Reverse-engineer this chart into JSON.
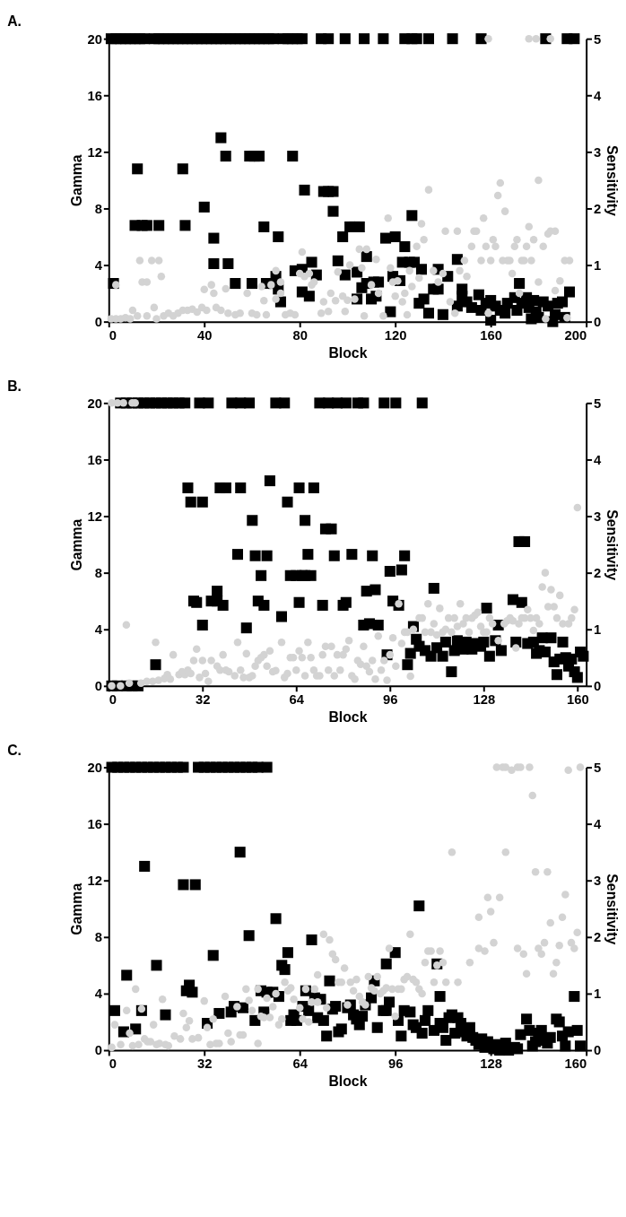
{
  "chart_data": [
    {
      "type": "scatter",
      "title": "A.",
      "xlabel": "Block",
      "ylabel": "Gamma",
      "y2label": "Sensitivity",
      "xlim": [
        0,
        200
      ],
      "xticks": [
        0,
        40,
        80,
        120,
        160,
        200
      ],
      "ylim": [
        0,
        20
      ],
      "yticks": [
        0,
        4,
        8,
        12,
        16,
        20
      ],
      "y2lim": [
        0,
        5
      ],
      "y2ticks": [
        0,
        1,
        2,
        3,
        4,
        5
      ],
      "grid": false,
      "series": [
        {
          "color": "#000000",
          "marker": "square",
          "x": [
            1,
            3,
            5,
            7,
            9,
            11,
            13,
            15,
            19,
            21,
            23,
            25,
            27,
            29,
            31,
            33,
            35,
            37,
            39,
            41,
            43,
            45,
            47,
            49,
            51,
            53,
            55,
            57,
            59,
            61,
            63,
            65,
            67,
            69,
            73,
            75,
            77,
            79,
            81,
            89,
            92,
            99,
            107,
            115,
            124,
            127,
            129,
            134,
            144,
            156,
            183,
            192,
            195,
            2,
            12,
            11,
            14,
            16,
            21,
            31,
            32,
            40,
            44,
            44,
            47,
            49,
            50,
            53,
            59,
            61,
            63,
            60,
            65,
            66,
            69,
            70,
            71,
            72,
            71,
            77,
            78,
            81,
            82,
            81,
            84,
            85,
            87,
            90,
            92,
            94,
            94,
            96,
            98,
            99,
            101,
            103,
            105,
            104,
            104,
            106,
            108,
            108,
            110,
            111,
            112,
            113,
            116,
            118,
            119,
            120,
            122,
            123,
            124,
            126,
            127,
            128,
            130,
            131,
            132,
            134,
            136,
            138,
            138,
            140,
            142,
            146,
            146,
            148,
            148,
            150,
            152,
            155,
            156,
            158,
            160,
            160,
            162,
            164,
            166,
            167,
            170,
            171,
            172,
            173,
            175,
            176,
            177,
            178,
            179,
            180,
            182,
            184,
            186,
            187,
            188,
            190,
            191,
            193
          ],
          "values": [
            20,
            20,
            20,
            20,
            20,
            20,
            20,
            20,
            20,
            20,
            20,
            20,
            20,
            20,
            20,
            20,
            20,
            20,
            20,
            20,
            20,
            20,
            20,
            20,
            20,
            20,
            20,
            20,
            20,
            20,
            20,
            20,
            20,
            20,
            20,
            20,
            20,
            20,
            20,
            20,
            20,
            20,
            20,
            20,
            20,
            20,
            20,
            20,
            20,
            20,
            20,
            20,
            20,
            2.7,
            10.8,
            6.8,
            6.8,
            6.8,
            6.8,
            10.8,
            6.8,
            8.1,
            5.9,
            4.1,
            13,
            11.7,
            4.1,
            2.7,
            11.7,
            11.7,
            11.7,
            2.7,
            6.7,
            2.7,
            2.7,
            3.2,
            6,
            1.4,
            2.3,
            11.7,
            3.6,
            3.7,
            9.3,
            2.1,
            1.8,
            4.2,
            3.3,
            9.2,
            9.2,
            9.2,
            7.8,
            4.3,
            6,
            3.3,
            6.7,
            6.7,
            6.7,
            3.5,
            1.6,
            2.4,
            4.6,
            2.7,
            1.6,
            2.8,
            1.8,
            2.8,
            5.9,
            0.7,
            3.2,
            6,
            2.9,
            4.2,
            5.3,
            4.2,
            7.5,
            4.2,
            1.3,
            3.7,
            1.6,
            0.6,
            2.3,
            3.7,
            2.3,
            0.5,
            3.2,
            4.4,
            1.1,
            2.3,
            1.8,
            1.4,
            1,
            1.9,
            0.8,
            1.3,
            0.1,
            1.5,
            1.1,
            0.8,
            0.6,
            1.3,
            1.7,
            0.8,
            2.7,
            1.3,
            1.7,
            1,
            0.2,
            1.5,
            0.7,
            0.3,
            1.4,
            1.1,
            0,
            0.5,
            1.3,
            1.4,
            0.3,
            2.1
          ]
        },
        {
          "color": "#d3d3d3",
          "marker": "circle",
          "axis": "y2",
          "x": [
            1,
            3,
            3,
            5,
            7,
            9,
            10,
            12,
            13,
            14,
            16,
            16,
            18,
            19,
            20,
            21,
            22,
            23,
            25,
            27,
            29,
            31,
            33,
            35,
            37,
            39,
            40,
            41,
            43,
            44,
            45,
            47,
            49,
            50,
            53,
            55,
            58,
            60,
            62,
            64,
            65,
            66,
            68,
            70,
            70,
            72,
            72,
            74,
            76,
            78,
            80,
            81,
            82,
            84,
            85,
            86,
            89,
            90,
            92,
            93,
            95,
            96,
            98,
            99,
            100,
            101,
            103,
            105,
            106,
            107,
            108,
            110,
            112,
            113,
            115,
            117,
            118,
            119,
            120,
            121,
            123,
            124,
            125,
            126,
            127,
            129,
            130,
            131,
            132,
            134,
            136,
            138,
            140,
            141,
            143,
            145,
            146,
            147,
            149,
            150,
            152,
            153,
            154,
            156,
            157,
            158,
            159,
            160,
            161,
            162,
            163,
            164,
            165,
            166,
            167,
            168,
            169,
            170,
            171,
            172,
            173,
            174,
            175,
            176,
            177,
            178,
            180,
            180,
            182,
            183,
            184,
            185,
            187,
            187,
            189,
            191,
            192,
            193,
            159,
            176,
            179,
            185
          ],
          "values": [
            0.05,
            0.65,
            0.05,
            0.05,
            0.07,
            0.05,
            0.2,
            0.1,
            1.08,
            0.7,
            0.7,
            0.1,
            1.08,
            0.25,
            0.05,
            1.08,
            0.8,
            0.1,
            0.15,
            0.1,
            0.15,
            0.2,
            0.2,
            0.22,
            0.17,
            0.25,
            0.57,
            0.2,
            0.65,
            0.5,
            0.25,
            0.2,
            0.58,
            0.15,
            0.12,
            0.15,
            0.5,
            0.15,
            0.12,
            0.62,
            0.37,
            0.12,
            0.65,
            0.4,
            0.9,
            0.7,
            0.5,
            0.12,
            0.15,
            0.12,
            0.85,
            1.23,
            0.8,
            0.85,
            0.65,
            0.7,
            0.15,
            0.35,
            0.18,
            0.5,
            0.37,
            0.88,
            0.45,
            0.18,
            0.38,
            1,
            0.4,
            1.28,
            0.95,
            0.1,
            1.28,
            0.65,
            1.1,
            0.5,
            0.1,
            1.83,
            0.95,
            0.7,
            0.45,
            0.72,
            0.35,
            0.5,
            0.12,
            0.9,
            0.62,
            1.33,
            0.77,
            1.73,
            1.45,
            2.33,
            0.9,
            0.7,
            0.85,
            1.6,
            0.35,
            0.15,
            1.6,
            0.9,
            1.08,
            0.8,
            1.33,
            1.6,
            1.6,
            1.08,
            1.83,
            1.33,
            0.15,
            1.08,
            1.45,
            1.33,
            2.23,
            2.45,
            1.08,
            1.95,
            1.08,
            1.08,
            0.85,
            1.33,
            1.45,
            0.5,
            1.08,
            1.08,
            1.33,
            1.68,
            1.08,
            1.45,
            0.7,
            2.5,
            1.33,
            0.05,
            1.55,
            1.6,
            1.6,
            0.55,
            0.72,
            1.08,
            0.07,
            1.08,
            5,
            5,
            5,
            5
          ]
        }
      ]
    },
    {
      "type": "scatter",
      "title": "B.",
      "xlabel": "Block",
      "ylabel": "Gamma",
      "y2label": "Sensitivity",
      "xlim": [
        0,
        163
      ],
      "xticks": [
        0,
        32,
        64,
        96,
        128,
        160
      ],
      "ylim": [
        0,
        20
      ],
      "yticks": [
        0,
        4,
        8,
        12,
        16,
        20
      ],
      "y2lim": [
        0,
        5
      ],
      "y2ticks": [
        0,
        1,
        2,
        3,
        4,
        5
      ],
      "grid": false,
      "series": [
        {
          "color": "#000000",
          "marker": "square",
          "x": [
            4,
            6,
            8,
            10,
            12,
            14,
            16,
            18,
            20,
            22,
            24,
            26,
            31,
            34,
            42,
            45,
            48,
            57,
            60,
            72,
            75,
            78,
            81,
            85,
            87,
            94,
            98,
            107,
            1,
            3,
            6,
            8,
            10,
            16,
            27,
            28,
            29,
            30,
            32,
            32,
            35,
            37,
            37,
            38,
            40,
            39,
            44,
            45,
            47,
            49,
            50,
            51,
            52,
            53,
            54,
            55,
            59,
            61,
            62,
            64,
            65,
            65,
            66,
            67,
            67,
            68,
            69,
            70,
            73,
            74,
            76,
            77,
            80,
            81,
            83,
            87,
            88,
            89,
            91,
            92,
            90,
            95,
            96,
            97,
            99,
            100,
            101,
            102,
            103,
            104,
            105,
            106,
            108,
            110,
            111,
            112,
            114,
            115,
            117,
            118,
            119,
            121,
            122,
            124,
            125,
            127,
            128,
            129,
            130,
            132,
            133,
            134,
            138,
            139,
            140,
            141,
            142,
            143,
            145,
            146,
            147,
            148,
            149,
            151,
            152,
            153,
            154,
            155,
            156,
            157,
            158,
            159,
            160,
            161,
            162
          ],
          "values": [
            20,
            20,
            20,
            20,
            20,
            20,
            20,
            20,
            20,
            20,
            20,
            20,
            20,
            20,
            20,
            20,
            20,
            20,
            20,
            20,
            20,
            20,
            20,
            20,
            20,
            20,
            20,
            20,
            0,
            0,
            0,
            0,
            0,
            1.5,
            14,
            13,
            6,
            5.9,
            13,
            4.3,
            6,
            6.7,
            6,
            14,
            14,
            5.7,
            9.3,
            14,
            4.1,
            11.7,
            9.2,
            6,
            7.8,
            5.7,
            9.2,
            14.5,
            4.9,
            13,
            7.8,
            7.8,
            14,
            5.9,
            7.8,
            7.8,
            11.7,
            9.3,
            7.8,
            14,
            5.7,
            11.1,
            11.1,
            9.2,
            5.7,
            5.9,
            9.3,
            4.3,
            6.7,
            4.4,
            6.8,
            4.3,
            9.2,
            2.2,
            8.1,
            6,
            5.7,
            8.2,
            9.2,
            1.5,
            2.3,
            4.2,
            3.3,
            2.8,
            2.5,
            2.1,
            6.9,
            2.7,
            2.1,
            3.1,
            1,
            2.5,
            3.2,
            2.6,
            3.1,
            2.6,
            3,
            2.8,
            3.1,
            5.5,
            2.1,
            3.2,
            4.3,
            2.5,
            6.1,
            3.1,
            10.2,
            5.9,
            10.2,
            3,
            3.1,
            2.3,
            2.5,
            3.4,
            2.4,
            3.4,
            1.7,
            0.8,
            1.9,
            3.1,
            2,
            1.4,
            1.9,
            1,
            0.6,
            2.4,
            2.1
          ]
        },
        {
          "color": "#d3d3d3",
          "marker": "circle",
          "axis": "y2",
          "x": [
            1,
            4,
            7,
            6,
            1,
            3,
            5,
            8,
            9,
            11,
            13,
            15,
            16,
            17,
            19,
            20,
            21,
            22,
            24,
            25,
            26,
            27,
            28,
            29,
            30,
            31,
            32,
            33,
            34,
            35,
            37,
            38,
            39,
            40,
            41,
            43,
            44,
            45,
            46,
            47,
            48,
            49,
            50,
            51,
            52,
            53,
            54,
            55,
            56,
            57,
            59,
            60,
            61,
            62,
            63,
            64,
            65,
            66,
            67,
            68,
            69,
            70,
            71,
            72,
            73,
            74,
            75,
            76,
            77,
            78,
            79,
            80,
            81,
            82,
            83,
            84,
            85,
            86,
            87,
            88,
            89,
            90,
            91,
            92,
            93,
            94,
            95,
            96,
            97,
            98,
            99,
            100,
            101,
            102,
            103,
            104,
            106,
            107,
            108,
            109,
            110,
            111,
            112,
            113,
            114,
            115,
            116,
            117,
            118,
            119,
            120,
            121,
            122,
            123,
            124,
            125,
            126,
            127,
            128,
            129,
            130,
            131,
            133,
            135,
            136,
            137,
            138,
            139,
            140,
            141,
            142,
            143,
            144,
            145,
            146,
            147,
            148,
            149,
            150,
            151,
            152,
            153,
            154,
            155,
            160,
            157,
            158,
            159
          ],
          "values": [
            0,
            0,
            0.05,
            1.08,
            5,
            5,
            5,
            5,
            5,
            0.05,
            0.08,
            0.08,
            0.77,
            0.1,
            0.13,
            0.2,
            0.12,
            0.55,
            0.2,
            0.25,
            0.2,
            0.28,
            0.22,
            0.45,
            0.65,
            0.15,
            0.45,
            0.22,
            0.08,
            0.45,
            0.35,
            0.28,
            0.55,
            0.28,
            0.25,
            0.18,
            0.77,
            0.28,
            0.15,
            0.57,
            0.15,
            0.18,
            0.35,
            0.45,
            0.5,
            0.55,
            0.35,
            0.62,
            0.25,
            0.27,
            0.77,
            0.15,
            0.22,
            0.5,
            0.5,
            0.28,
            0.62,
            0.5,
            0.18,
            0.77,
            0.5,
            0.28,
            0.18,
            0.18,
            0.55,
            0.7,
            0.28,
            0.7,
            0.18,
            0.55,
            0.28,
            0.55,
            0.65,
            0.8,
            0.18,
            0.12,
            0.45,
            0.38,
            0.7,
            0.35,
            0.25,
            0.45,
            0.12,
            0.88,
            0.28,
            0.45,
            0.1,
            0.55,
            0.85,
            0.35,
            1.45,
            0.75,
            0.95,
            0.95,
            0.17,
            1,
            1.2,
            1.2,
            0.95,
            1.45,
            0.95,
            1.1,
            0.9,
            1.37,
            0.95,
            1,
            1.2,
            0.95,
            1.2,
            1.05,
            1.45,
            1.1,
            1.2,
            0.95,
            1.2,
            1.25,
            1.3,
            1.05,
            0.95,
            0.95,
            1.2,
            1.1,
            0.8,
            1.1,
            1.15,
            1.2,
            1.15,
            0.67,
            1.1,
            1.2,
            1.2,
            1.35,
            1.2,
            0.98,
            1.2,
            1.1,
            1.75,
            2,
            1.4,
            1.7,
            1.4,
            1.2,
            1.6,
            1.1,
            3.15,
            1.1,
            1.2,
            1.35
          ]
        }
      ]
    },
    {
      "type": "scatter",
      "title": "C.",
      "xlabel": "Block",
      "ylabel": "Gamma",
      "y2label": "Sensitivity",
      "xlim": [
        0,
        160
      ],
      "xticks": [
        0,
        32,
        64,
        96,
        128,
        160
      ],
      "ylim": [
        0,
        20
      ],
      "yticks": [
        0,
        4,
        8,
        12,
        16,
        20
      ],
      "y2lim": [
        0,
        5
      ],
      "y2ticks": [
        0,
        1,
        2,
        3,
        4,
        5
      ],
      "grid": false,
      "series": [
        {
          "color": "#000000",
          "marker": "square",
          "x": [
            1,
            3,
            5,
            7,
            9,
            11,
            13,
            15,
            17,
            19,
            21,
            23,
            25,
            30,
            32,
            34,
            36,
            38,
            40,
            42,
            44,
            46,
            48,
            50,
            53,
            2,
            5,
            6,
            9,
            11,
            12,
            16,
            19,
            25,
            26,
            27,
            28,
            29,
            33,
            35,
            37,
            41,
            42,
            44,
            45,
            47,
            49,
            51,
            52,
            53,
            55,
            56,
            57,
            58,
            59,
            60,
            61,
            62,
            63,
            65,
            66,
            67,
            68,
            69,
            70,
            71,
            72,
            73,
            74,
            75,
            76,
            77,
            78,
            80,
            81,
            82,
            83,
            84,
            85,
            86,
            88,
            89,
            90,
            92,
            93,
            93,
            94,
            96,
            97,
            98,
            99,
            101,
            102,
            103,
            104,
            105,
            106,
            107,
            109,
            110,
            111,
            111,
            112,
            113,
            114,
            115,
            116,
            117,
            118,
            119,
            120,
            121,
            122,
            123,
            124,
            125,
            126,
            127,
            129,
            130,
            131,
            133,
            134,
            136,
            137,
            138,
            140,
            141,
            142,
            143,
            144,
            145,
            146,
            147,
            148,
            150,
            151,
            152,
            153,
            154,
            156,
            157,
            158
          ],
          "values": [
            20,
            20,
            20,
            20,
            20,
            20,
            20,
            20,
            20,
            20,
            20,
            20,
            20,
            20,
            20,
            20,
            20,
            20,
            20,
            20,
            20,
            20,
            20,
            20,
            20,
            2.8,
            1.3,
            5.3,
            1.5,
            2.8,
            13,
            6,
            2.5,
            11.7,
            4.2,
            4.6,
            4.1,
            11.7,
            1.9,
            6.7,
            2.6,
            2.7,
            3.1,
            14,
            3,
            8.1,
            2.1,
            4.2,
            2.7,
            4.1,
            4.1,
            9.3,
            3.8,
            6,
            5.7,
            6.9,
            2.1,
            2.5,
            2.1,
            3.1,
            4.2,
            2.8,
            7.8,
            3.7,
            2.3,
            3.6,
            2.1,
            1,
            4.9,
            2.9,
            3.1,
            1.3,
            1.5,
            3,
            3.2,
            2.5,
            2.2,
            1.8,
            2.4,
            3.2,
            3.7,
            4.9,
            1.6,
            2.8,
            6.1,
            2.8,
            3.4,
            6.9,
            2.1,
            1,
            2.8,
            2.7,
            1.8,
            1.6,
            10.2,
            1.2,
            2.1,
            2.8,
            1.4,
            6.1,
            3.8,
            1.9,
            1.6,
            0.7,
            2.3,
            2.5,
            1.2,
            2.3,
            1.9,
            1.3,
            1,
            1.6,
            0.9,
            0.7,
            0.4,
            0.8,
            0.2,
            0.6,
            0.1,
            0.4,
            0,
            0.5,
            0,
            0.2,
            0.1,
            1.1,
            2.2,
            1.4,
            0.3,
            0.6,
            1.2,
            1.4,
            0.7,
            0.5,
            0.9,
            2.2,
            2,
            1,
            0.3,
            1.3,
            3.8,
            1.4,
            0.3
          ]
        },
        {
          "color": "#d3d3d3",
          "marker": "circle",
          "axis": "y2",
          "x": [
            1,
            2,
            4,
            6,
            7,
            8,
            9,
            10,
            11,
            12,
            13,
            14,
            15,
            16,
            17,
            18,
            19,
            20,
            22,
            24,
            25,
            26,
            27,
            28,
            30,
            32,
            33,
            34,
            35,
            36,
            37,
            39,
            40,
            41,
            43,
            44,
            45,
            46,
            47,
            48,
            50,
            50,
            51,
            52,
            53,
            54,
            55,
            56,
            57,
            58,
            59,
            60,
            61,
            62,
            64,
            65,
            66,
            67,
            68,
            69,
            70,
            70,
            72,
            73,
            74,
            75,
            76,
            77,
            78,
            79,
            80,
            81,
            82,
            83,
            84,
            85,
            86,
            87,
            88,
            89,
            90,
            91,
            92,
            93,
            94,
            95,
            96,
            97,
            98,
            99,
            100,
            101,
            102,
            103,
            104,
            105,
            106,
            107,
            108,
            109,
            110,
            111,
            112,
            113,
            115,
            117,
            121,
            124,
            124,
            126,
            127,
            128,
            129,
            131,
            133,
            137,
            139,
            140,
            143,
            144,
            145,
            146,
            147,
            148,
            149,
            150,
            151,
            152,
            153,
            155,
            156,
            157,
            130,
            132,
            133,
            135,
            137,
            138,
            141,
            142,
            154,
            158
          ],
          "values": [
            0.05,
            0.45,
            0.1,
            0.7,
            0.3,
            0.08,
            1.08,
            0.1,
            0.73,
            0.2,
            0.15,
            0.15,
            0.45,
            0.1,
            0.12,
            0.9,
            0.1,
            0.08,
            0.25,
            0.2,
            0.65,
            0.4,
            0.52,
            0.2,
            0.22,
            0.87,
            0.4,
            0.1,
            0.55,
            0.12,
            0.12,
            0.95,
            0.3,
            0.15,
            0.77,
            0.27,
            0.27,
            1.08,
            0.88,
            0.7,
            0.12,
            1.08,
            0.6,
            0.58,
            0.92,
            0.58,
            0.77,
            1,
            0.45,
            0.55,
            1.2,
            1.05,
            1.1,
            0.9,
            0.75,
            0.55,
            1.08,
            0.5,
            0.85,
            1.08,
            1.33,
            0.85,
            2.05,
            0.75,
            1.95,
            1.7,
            1.6,
            1.2,
            1.2,
            1.45,
            0.8,
            1.2,
            1.05,
            1.25,
            0.95,
            0.85,
            0.8,
            1.3,
            1.1,
            1.05,
            1.3,
            1,
            1.05,
            1.1,
            1.8,
            1.08,
            0.6,
            1.08,
            1.08,
            1.25,
            1.3,
            2.05,
            1.25,
            1.2,
            1.08,
            1,
            1.55,
            1.75,
            1.75,
            1.2,
            1.5,
            1.75,
            1.55,
            1.2,
            3.5,
            1.2,
            1.55,
            1.8,
            2.35,
            1.75,
            2.7,
            2.45,
            1.9,
            2.7,
            3.5,
            1.8,
            1.7,
            1.35,
            3.15,
            1.8,
            1.7,
            1.9,
            3.15,
            2.25,
            1.35,
            1.55,
            1.85,
            2.35,
            2.75,
            1.9,
            1.8,
            2.08,
            5,
            5,
            5,
            4.95,
            5,
            5,
            5,
            4.5,
            4.95,
            5
          ]
        }
      ]
    }
  ]
}
